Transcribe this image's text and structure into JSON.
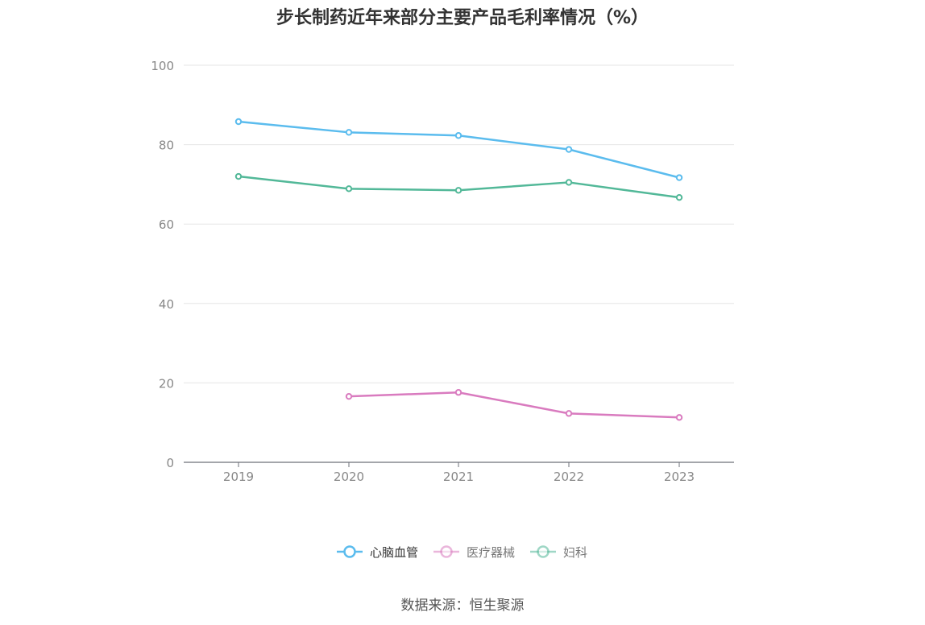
{
  "chart_data": {
    "type": "line",
    "title": "步长制药近年来部分主要产品毛利率情况（%）",
    "x": [
      "2019",
      "2020",
      "2021",
      "2022",
      "2023"
    ],
    "ylim": [
      0,
      100
    ],
    "yticks": [
      0,
      20,
      40,
      60,
      80,
      100
    ],
    "grid": true,
    "legend": "bottom",
    "series": [
      {
        "name": "心脑血管",
        "color": "#5bbcee",
        "values": [
          85.8,
          83.1,
          82.3,
          78.8,
          71.7
        ]
      },
      {
        "name": "医疗器械",
        "color": "#d97bbf",
        "values": [
          null,
          16.6,
          17.6,
          12.3,
          11.3
        ]
      },
      {
        "name": "妇科",
        "color": "#52b898",
        "values": [
          72.0,
          68.9,
          68.5,
          70.5,
          66.7
        ]
      }
    ]
  },
  "source": "数据来源：恒生聚源"
}
